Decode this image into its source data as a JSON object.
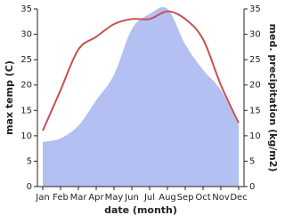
{
  "chart_data": {
    "type": "line",
    "x_label": "date (month)",
    "y_label": "max temp (C)",
    "y2_label": "med. precipitation (kg/m2)",
    "categories": [
      "Jan",
      "Feb",
      "Mar",
      "Apr",
      "May",
      "Jun",
      "Jul",
      "Aug",
      "Sep",
      "Oct",
      "Nov",
      "Dec"
    ],
    "series": [
      {
        "name": "max temp",
        "color": "#c8504f",
        "values": [
          11,
          19,
          27,
          29.5,
          32,
          33,
          33,
          34.5,
          33,
          29,
          20,
          12.5
        ]
      },
      {
        "name": "med. precipitation",
        "color": "#b4c0f2",
        "axis": "y2",
        "values": [
          8.8,
          9.5,
          12,
          17,
          22,
          31,
          34,
          35,
          28,
          23,
          19,
          12
        ]
      }
    ],
    "ylim": [
      0,
      35
    ],
    "yticks": [
      0,
      5,
      10,
      15,
      20,
      25,
      30,
      35
    ],
    "y2lim": [
      0,
      35
    ],
    "y2ticks": [
      0,
      5,
      10,
      15,
      20,
      25,
      30,
      35
    ]
  }
}
